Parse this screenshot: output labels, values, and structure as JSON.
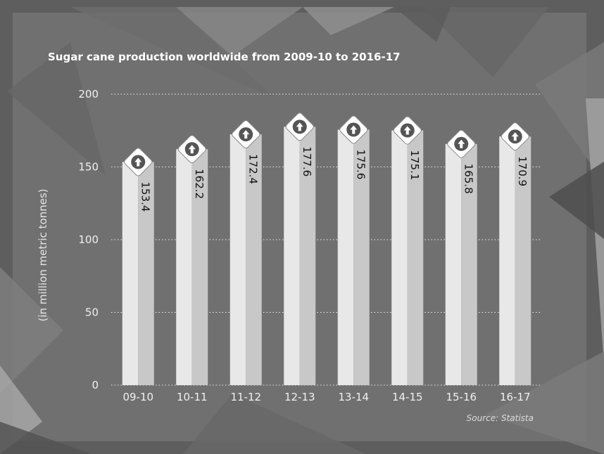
{
  "chart_data": {
    "type": "bar",
    "title": "Sugar cane production worldwide from 2009-10 to 2016-17",
    "ylabel": "(in million metric tonnes)",
    "xlabel": "",
    "source": "Source: Statista",
    "categories": [
      "09-10",
      "10-11",
      "11-12",
      "12-13",
      "13-14",
      "14-15",
      "15-16",
      "16-17"
    ],
    "values": [
      153.4,
      162.2,
      172.4,
      177.6,
      175.6,
      175.1,
      165.8,
      170.9
    ],
    "ylim": [
      0,
      200
    ],
    "yticks": [
      0,
      50,
      100,
      150,
      200
    ],
    "grid": true,
    "legend": "none",
    "colors": {
      "background": "#5e5e5e",
      "panel": "#707070",
      "bar_light": "#e8e8e8",
      "bar_shade": "#c8c8c8",
      "gridline": "#f2f2f2",
      "text": "#ffffff",
      "marker_fill": "#ffffff",
      "marker_icon": "#555555"
    },
    "marker_icon": "up-arrow-icon"
  }
}
